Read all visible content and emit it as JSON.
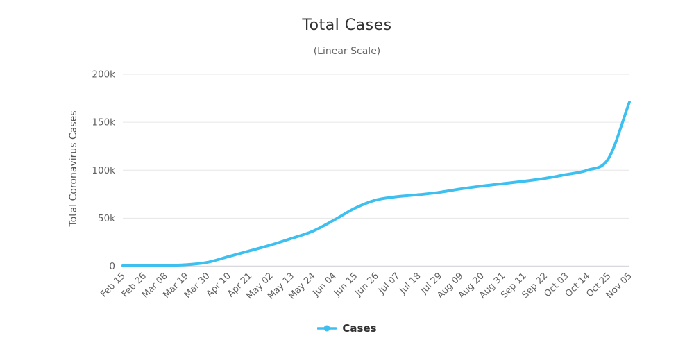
{
  "chart_data": {
    "type": "line",
    "title": "Total Cases",
    "subtitle": "(Linear Scale)",
    "ylabel": "Total Coronavirus Cases",
    "xlabel": "",
    "ylim": [
      0,
      200000
    ],
    "grid": true,
    "legend_position": "bottom",
    "yticks": [
      {
        "value": 0,
        "label": "0"
      },
      {
        "value": 50000,
        "label": "50k"
      },
      {
        "value": 100000,
        "label": "100k"
      },
      {
        "value": 150000,
        "label": "150k"
      },
      {
        "value": 200000,
        "label": "200k"
      }
    ],
    "categories": [
      "Feb 15",
      "Feb 26",
      "Mar 08",
      "Mar 19",
      "Mar 30",
      "Apr 10",
      "Apr 21",
      "May 02",
      "May 13",
      "May 24",
      "Jun 04",
      "Jun 15",
      "Jun 26",
      "Jul 07",
      "Jul 18",
      "Jul 29",
      "Aug 09",
      "Aug 20",
      "Aug 31",
      "Sep 11",
      "Sep 22",
      "Oct 03",
      "Oct 14",
      "Oct 25",
      "Nov 05"
    ],
    "series": [
      {
        "name": "Cases",
        "color": "#3dc0f0",
        "values": [
          500,
          600,
          800,
          1500,
          4000,
          10000,
          16000,
          22000,
          29000,
          36500,
          48000,
          60500,
          69000,
          72500,
          74500,
          77000,
          80500,
          83500,
          86000,
          88500,
          91500,
          95500,
          100000,
          112000,
          171000
        ]
      }
    ],
    "colors": {
      "grid_line": "#e6e6e6",
      "axis_line": "#d8d8de",
      "tick_label": "#606060",
      "title": "#333333",
      "subtitle": "#666666",
      "legend_text": "#333333"
    }
  }
}
